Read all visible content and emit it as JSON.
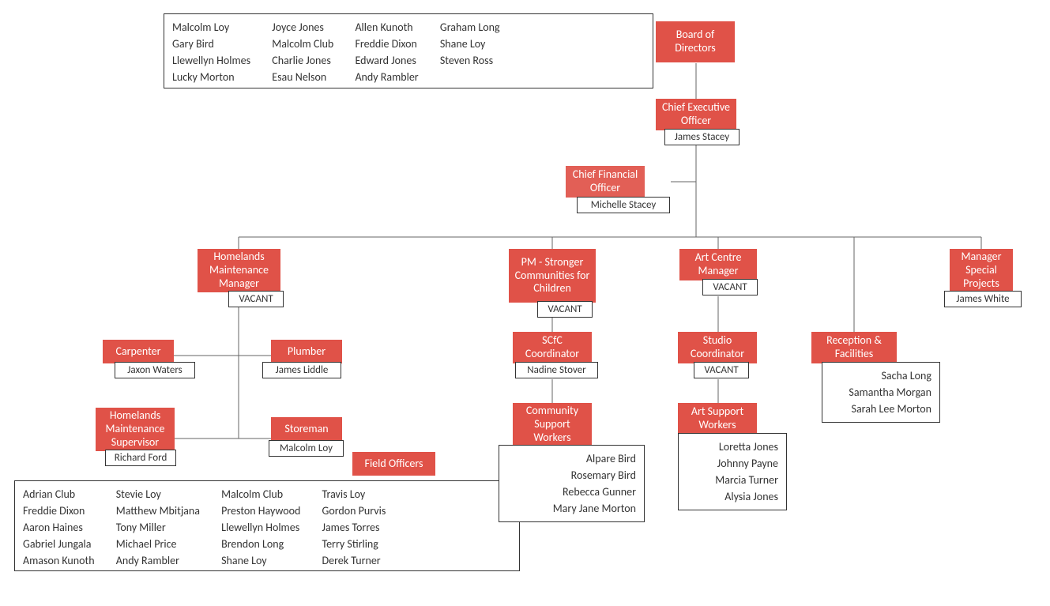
{
  "colors": {
    "box_bg": "#e05248",
    "box_fg": "#ffffff",
    "name_border": "#333333",
    "name_bg": "#ffffff",
    "connector": "#666666",
    "page_bg": "#ffffff"
  },
  "board": {
    "title": "Board of Directors",
    "members": [
      [
        "Malcolm Loy",
        "Gary Bird",
        "Llewellyn Holmes",
        "Lucky Morton"
      ],
      [
        "Joyce Jones",
        "Malcolm Club",
        "Charlie Jones",
        "Esau Nelson"
      ],
      [
        "Allen Kunoth",
        "Freddie Dixon",
        "Edward Jones",
        "Andy Rambler"
      ],
      [
        "Graham Long",
        "Shane Loy",
        "Steven Ross"
      ]
    ]
  },
  "ceo": {
    "title": "Chief Executive Officer",
    "name": "James Stacey"
  },
  "cfo": {
    "title": "Chief Financial Officer",
    "name": "Michelle Stacey"
  },
  "hmm": {
    "title": "Homelands Maintenance Manager",
    "name": "VACANT"
  },
  "carpenter": {
    "title": "Carpenter",
    "name": "Jaxon Waters"
  },
  "plumber": {
    "title": "Plumber",
    "name": "James Liddle"
  },
  "hms": {
    "title": "Homelands Maintenance Supervisor",
    "name": "Richard Ford"
  },
  "storeman": {
    "title": "Storeman",
    "name": "Malcolm Loy"
  },
  "field_officers": {
    "title": "Field Officers",
    "members": [
      [
        "Adrian Club",
        "Freddie Dixon",
        "Aaron Haines",
        "Gabriel Jungala",
        "Amason Kunoth"
      ],
      [
        "Stevie Loy",
        "Matthew Mbitjana",
        "Tony Miller",
        "Michael Price",
        "Andy Rambler"
      ],
      [
        "Malcolm Club",
        "Preston Haywood",
        "Llewellyn Holmes",
        "Brendon Long",
        "Shane Loy"
      ],
      [
        "Travis Loy",
        "Gordon Purvis",
        "James Torres",
        "Terry Stirling",
        "Derek Turner"
      ]
    ]
  },
  "pm_scfc": {
    "title": "PM - Stronger Communities for Children",
    "name": "VACANT"
  },
  "scfc_coord": {
    "title": "SCfC Coordinator",
    "name": "Nadine Stover"
  },
  "csw": {
    "title": "Community Support Workers",
    "names": [
      "Alpare Bird",
      "Rosemary Bird",
      "Rebecca Gunner",
      "Mary Jane Morton"
    ]
  },
  "acm": {
    "title": "Art Centre Manager",
    "name": "VACANT"
  },
  "studio": {
    "title": "Studio Coordinator",
    "name": "VACANT"
  },
  "asw": {
    "title": "Art Support Workers",
    "names": [
      "Loretta Jones",
      "Johnny Payne",
      "Marcia Turner",
      "Alysia Jones"
    ]
  },
  "reception": {
    "title": "Reception & Facilities",
    "names": [
      "Sacha Long",
      "Samantha Morgan",
      "Sarah Lee Morton"
    ]
  },
  "msp": {
    "title": "Manager Special Projects",
    "name": "James White"
  }
}
